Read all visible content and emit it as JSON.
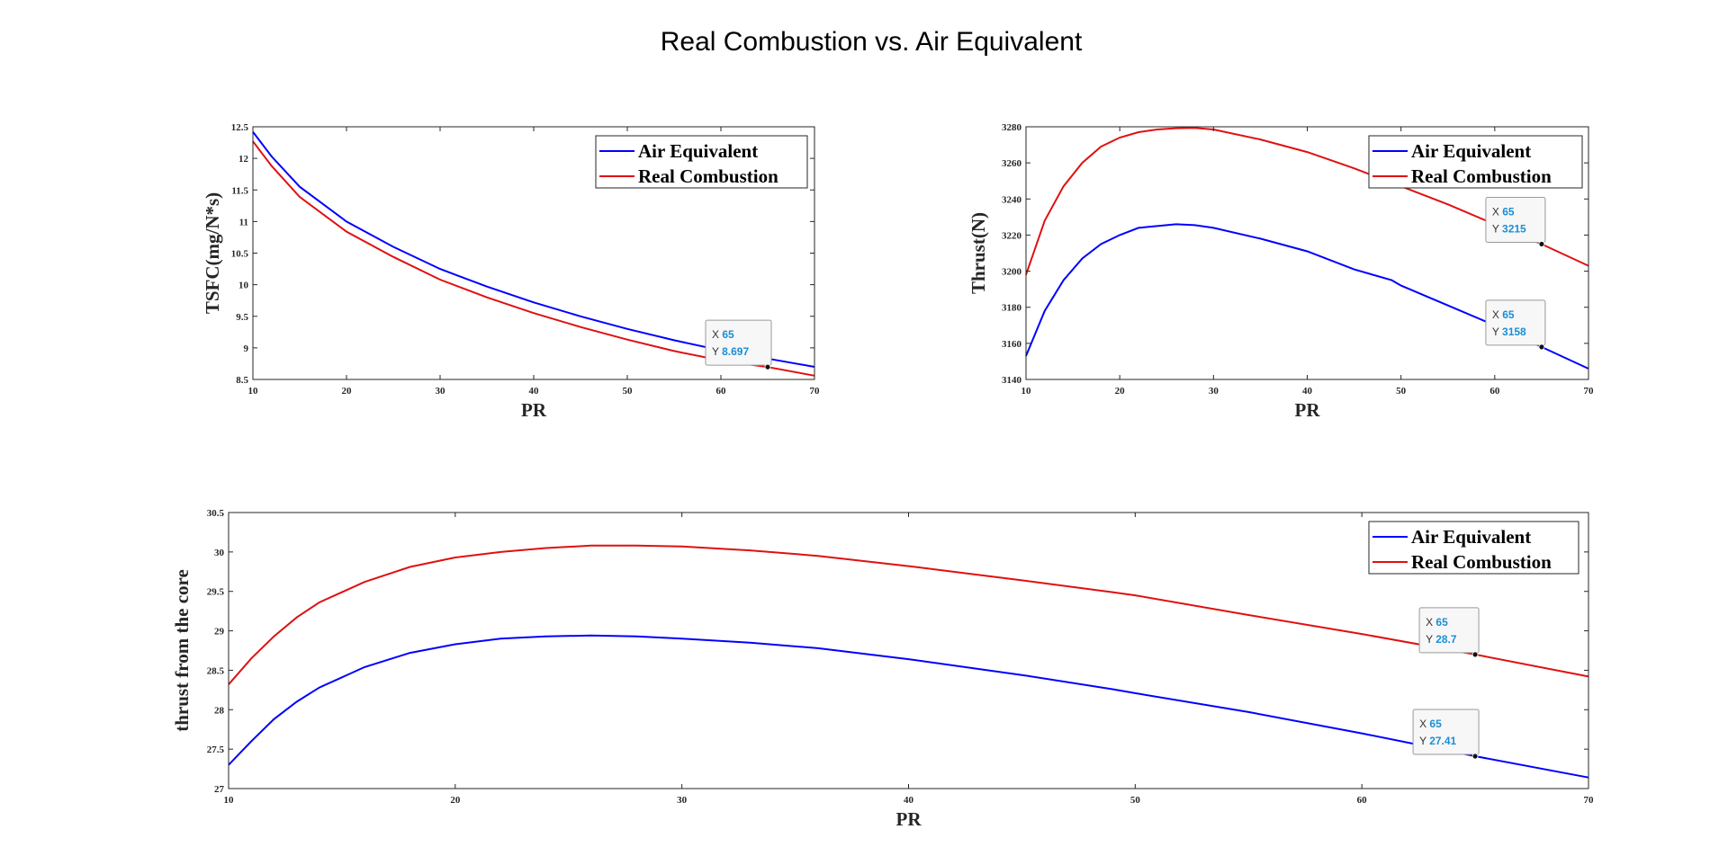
{
  "figure_title": "Real Combustion vs. Air Equivalent",
  "colors": {
    "air": "#0000ff",
    "real": "#e01010",
    "tip_value": "#1a8fd6"
  },
  "chart_data": [
    {
      "type": "line",
      "xlabel": "PR",
      "ylabel": "TSFC(mg/N*s)",
      "xlim": [
        10,
        70
      ],
      "ylim": [
        8.5,
        12.5
      ],
      "xticks": [
        10,
        20,
        30,
        40,
        50,
        60,
        70
      ],
      "yticks": [
        8.5,
        9,
        9.5,
        10,
        10.5,
        11,
        11.5,
        12,
        12.5
      ],
      "legend_position": "top-right",
      "series": [
        {
          "name": "Air Equivalent",
          "color": "#0000ff",
          "x": [
            10,
            12,
            15,
            20,
            25,
            30,
            35,
            40,
            45,
            50,
            55,
            60,
            65,
            70
          ],
          "y": [
            12.42,
            12.03,
            11.55,
            11.0,
            10.6,
            10.25,
            9.97,
            9.72,
            9.5,
            9.3,
            9.12,
            8.96,
            8.83,
            8.7
          ]
        },
        {
          "name": "Real Combustion",
          "color": "#e01010",
          "x": [
            10,
            12,
            15,
            20,
            25,
            30,
            35,
            40,
            45,
            50,
            55,
            60,
            65,
            70
          ],
          "y": [
            12.27,
            11.88,
            11.39,
            10.84,
            10.44,
            10.08,
            9.8,
            9.55,
            9.33,
            9.13,
            8.95,
            8.8,
            8.697,
            8.56
          ]
        }
      ],
      "datatips": [
        {
          "series": 1,
          "x": "65",
          "y": "8.697",
          "xv": 65,
          "yv": 8.697
        }
      ]
    },
    {
      "type": "line",
      "xlabel": "PR",
      "ylabel": "Thrust(N)",
      "xlim": [
        10,
        70
      ],
      "ylim": [
        3140,
        3280
      ],
      "xticks": [
        10,
        20,
        30,
        40,
        50,
        60,
        70
      ],
      "yticks": [
        3140,
        3160,
        3180,
        3200,
        3220,
        3240,
        3260,
        3280
      ],
      "legend_position": "top-right",
      "series": [
        {
          "name": "Air Equivalent",
          "color": "#0000ff",
          "x": [
            10,
            12,
            14,
            16,
            18,
            20,
            22,
            24,
            26,
            28,
            30,
            35,
            40,
            45,
            49,
            50,
            55,
            60,
            65,
            70
          ],
          "y": [
            3153,
            3178,
            3195,
            3207,
            3215,
            3220,
            3224,
            3225,
            3226,
            3225.5,
            3224,
            3218,
            3211,
            3201,
            3195,
            3192,
            3181,
            3170,
            3158,
            3146
          ]
        },
        {
          "name": "Real Combustion",
          "color": "#e01010",
          "x": [
            10,
            12,
            14,
            16,
            18,
            20,
            22,
            24,
            26,
            28,
            30,
            35,
            40,
            45,
            50,
            55,
            60,
            65,
            70
          ],
          "y": [
            3198,
            3228,
            3247,
            3260,
            3269,
            3274,
            3277,
            3278.5,
            3279.2,
            3279.4,
            3278.5,
            3273,
            3266,
            3257,
            3247,
            3237,
            3226,
            3215,
            3203
          ]
        }
      ],
      "datatips": [
        {
          "series": 1,
          "x": "65",
          "y": "3215",
          "xv": 65,
          "yv": 3215
        },
        {
          "series": 0,
          "x": "65",
          "y": "3158",
          "xv": 65,
          "yv": 3158
        }
      ]
    },
    {
      "type": "line",
      "xlabel": "PR",
      "ylabel": "thrust from the core",
      "xlim": [
        10,
        70
      ],
      "ylim": [
        27,
        30.5
      ],
      "xticks": [
        10,
        20,
        30,
        40,
        50,
        60,
        70
      ],
      "yticks": [
        27,
        27.5,
        28,
        28.5,
        29,
        29.5,
        30,
        30.5
      ],
      "legend_position": "top-right",
      "series": [
        {
          "name": "Air Equivalent",
          "color": "#0000ff",
          "x": [
            10,
            11,
            12,
            13,
            14,
            16,
            18,
            20,
            22,
            24,
            26,
            28,
            30,
            33,
            36,
            40,
            45,
            49,
            50,
            55,
            60,
            65,
            70
          ],
          "y": [
            27.3,
            27.6,
            27.88,
            28.1,
            28.28,
            28.54,
            28.72,
            28.83,
            28.9,
            28.93,
            28.94,
            28.93,
            28.9,
            28.85,
            28.78,
            28.64,
            28.44,
            28.26,
            28.21,
            27.97,
            27.7,
            27.41,
            27.14
          ]
        },
        {
          "name": "Real Combustion",
          "color": "#e01010",
          "x": [
            10,
            11,
            12,
            13,
            14,
            16,
            18,
            20,
            22,
            24,
            26,
            28,
            30,
            33,
            36,
            40,
            45,
            49,
            50,
            55,
            60,
            65,
            70
          ],
          "y": [
            28.32,
            28.65,
            28.93,
            29.17,
            29.36,
            29.62,
            29.81,
            29.93,
            30.0,
            30.05,
            30.08,
            30.08,
            30.07,
            30.02,
            29.95,
            29.82,
            29.64,
            29.49,
            29.45,
            29.2,
            28.96,
            28.7,
            28.42
          ]
        }
      ],
      "datatips": [
        {
          "series": 1,
          "x": "65",
          "y": "28.7",
          "xv": 65,
          "yv": 28.7
        },
        {
          "series": 0,
          "x": "65",
          "y": "27.41",
          "xv": 65,
          "yv": 27.41
        }
      ]
    }
  ]
}
